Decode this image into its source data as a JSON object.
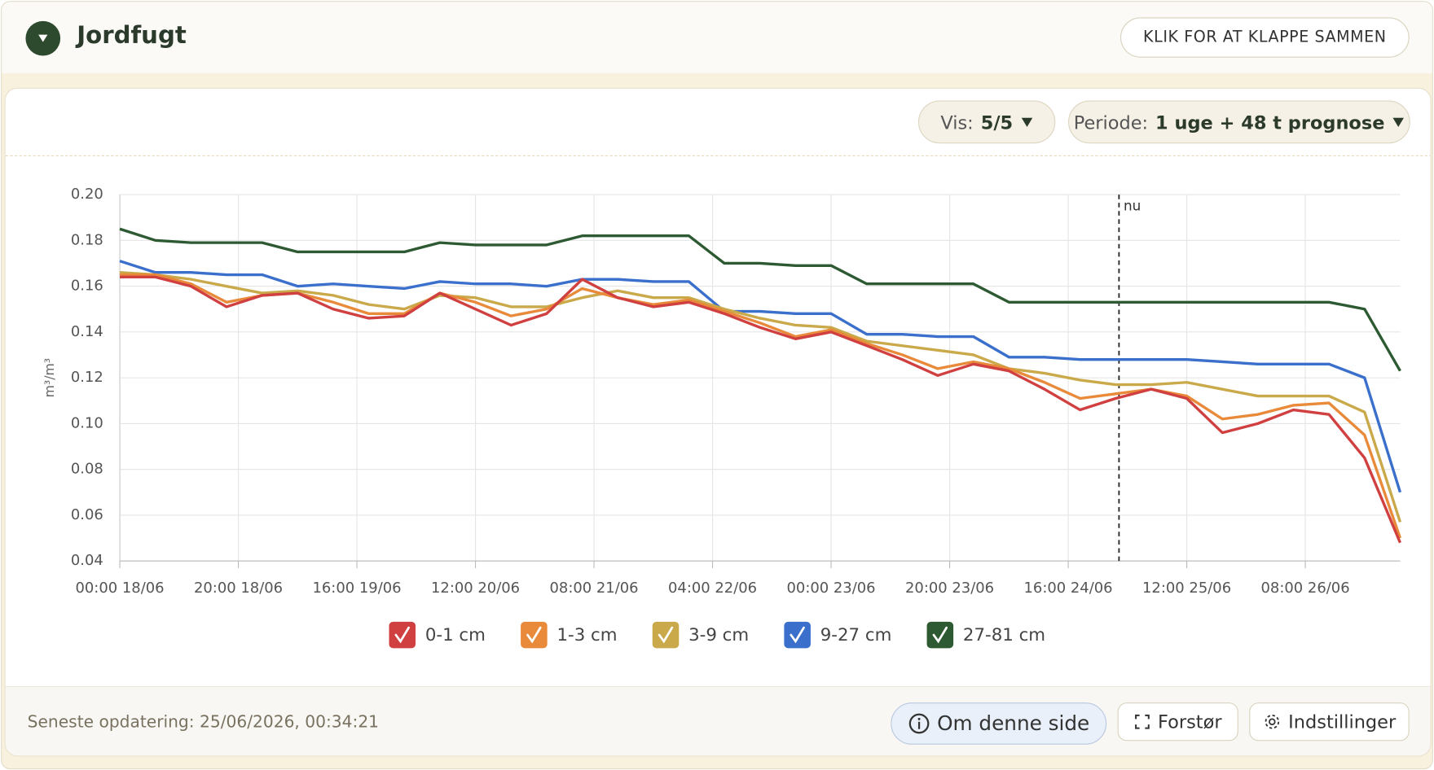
{
  "header": {
    "title": "Jordfugt",
    "collapse_button": "KLIK FOR AT KLAPPE SAMMEN"
  },
  "controls": {
    "show_label": "Vis:",
    "show_value": "5/5",
    "period_label": "Periode:",
    "period_value": "1 uge + 48 t prognose"
  },
  "chart_data": {
    "type": "line",
    "ylabel": "m³/m³",
    "x": [
      "00:00 18/06",
      "06:00 18/06",
      "12:00 18/06",
      "18:00 18/06",
      "00:00 19/06",
      "06:00 19/06",
      "12:00 19/06",
      "18:00 19/06",
      "00:00 20/06",
      "06:00 20/06",
      "12:00 20/06",
      "18:00 20/06",
      "00:00 21/06",
      "06:00 21/06",
      "12:00 21/06",
      "18:00 21/06",
      "00:00 22/06",
      "06:00 22/06",
      "12:00 22/06",
      "18:00 22/06",
      "00:00 23/06",
      "06:00 23/06",
      "12:00 23/06",
      "18:00 23/06",
      "00:00 24/06",
      "06:00 24/06",
      "12:00 24/06",
      "18:00 24/06",
      "00:00 25/06",
      "06:00 25/06",
      "12:00 25/06",
      "18:00 25/06",
      "00:00 26/06",
      "06:00 26/06",
      "12:00 26/06",
      "18:00 26/06",
      "00:00 27/06"
    ],
    "series": [
      {
        "name": "0-1 cm",
        "color": "#d04040",
        "values": [
          0.164,
          0.164,
          0.16,
          0.151,
          0.156,
          0.157,
          0.15,
          0.146,
          0.147,
          0.157,
          0.15,
          0.143,
          0.148,
          0.163,
          0.155,
          0.151,
          0.153,
          0.148,
          0.142,
          0.137,
          0.14,
          0.134,
          0.128,
          0.121,
          0.126,
          0.123,
          0.115,
          0.106,
          0.111,
          0.115,
          0.111,
          0.096,
          0.1,
          0.106,
          0.104,
          0.085,
          0.048
        ]
      },
      {
        "name": "1-3 cm",
        "color": "#e88a3a",
        "values": [
          0.165,
          0.165,
          0.161,
          0.153,
          0.156,
          0.157,
          0.153,
          0.148,
          0.148,
          0.157,
          0.153,
          0.147,
          0.15,
          0.159,
          0.155,
          0.152,
          0.154,
          0.149,
          0.144,
          0.138,
          0.141,
          0.135,
          0.13,
          0.124,
          0.127,
          0.124,
          0.118,
          0.111,
          0.113,
          0.115,
          0.112,
          0.102,
          0.104,
          0.108,
          0.109,
          0.095,
          0.05
        ]
      },
      {
        "name": "3-9 cm",
        "color": "#c9a94a",
        "values": [
          0.166,
          0.165,
          0.163,
          0.16,
          0.157,
          0.158,
          0.156,
          0.152,
          0.15,
          0.156,
          0.155,
          0.151,
          0.151,
          0.155,
          0.158,
          0.155,
          0.155,
          0.15,
          0.146,
          0.143,
          0.142,
          0.136,
          0.134,
          0.132,
          0.13,
          0.124,
          0.122,
          0.119,
          0.117,
          0.117,
          0.118,
          0.115,
          0.112,
          0.112,
          0.112,
          0.105,
          0.057
        ]
      },
      {
        "name": "9-27 cm",
        "color": "#3a6fcc",
        "values": [
          0.171,
          0.166,
          0.166,
          0.165,
          0.165,
          0.16,
          0.161,
          0.16,
          0.159,
          0.162,
          0.161,
          0.161,
          0.16,
          0.163,
          0.163,
          0.162,
          0.162,
          0.149,
          0.149,
          0.148,
          0.148,
          0.139,
          0.139,
          0.138,
          0.138,
          0.129,
          0.129,
          0.128,
          0.128,
          0.128,
          0.128,
          0.127,
          0.126,
          0.126,
          0.126,
          0.12,
          0.07
        ]
      },
      {
        "name": "27-81 cm",
        "color": "#2d5a32",
        "values": [
          0.185,
          0.18,
          0.179,
          0.179,
          0.179,
          0.175,
          0.175,
          0.175,
          0.175,
          0.179,
          0.178,
          0.178,
          0.178,
          0.182,
          0.182,
          0.182,
          0.182,
          0.17,
          0.17,
          0.169,
          0.169,
          0.161,
          0.161,
          0.161,
          0.161,
          0.153,
          0.153,
          0.153,
          0.153,
          0.153,
          0.153,
          0.153,
          0.153,
          0.153,
          0.153,
          0.15,
          0.123
        ]
      }
    ],
    "xlim": [
      "00:00 18/06",
      "00:00 27/06"
    ],
    "xticks": [
      "00:00 18/06",
      "20:00 18/06",
      "16:00 19/06",
      "12:00 20/06",
      "08:00 21/06",
      "04:00 22/06",
      "00:00 23/06",
      "20:00 23/06",
      "16:00 24/06",
      "12:00 25/06",
      "08:00 26/06"
    ],
    "ylim": [
      0.04,
      0.2
    ],
    "yticks": [
      0.04,
      0.06,
      0.08,
      {
        "value": 0.1,
        "label": "0.10"
      },
      0.12,
      0.14,
      0.16,
      0.18,
      {
        "value": 0.2,
        "label": "0.20"
      }
    ],
    "grid": true,
    "now_marker": {
      "x": "00:34 25/06",
      "label": "nu"
    }
  },
  "footer": {
    "last_update": "Seneste opdatering: 25/06/2026, 00:34:21",
    "buttons": [
      "Om denne side",
      "Forstør",
      "Indstillinger"
    ]
  }
}
